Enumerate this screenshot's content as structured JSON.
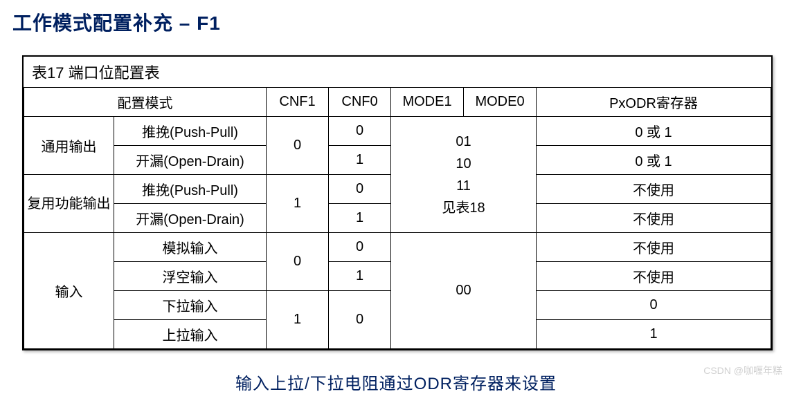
{
  "page": {
    "title": "工作模式配置补充   –   F1",
    "table_title": "表17     端口位配置表",
    "footer_note": "输入上拉/下拉电阻通过ODR寄存器来设置",
    "watermark": "CSDN @咖喱年糕"
  },
  "table": {
    "columns": [
      "配置模式",
      "CNF1",
      "CNF0",
      "MODE1",
      "MODE0",
      "PxODR寄存器"
    ],
    "groups": {
      "general_output": "通用输出",
      "alt_output": "复用功能输出",
      "input": "输入"
    },
    "rows": {
      "r1": {
        "mode": "推挽(Push-Pull)",
        "cnf0": "0",
        "odr": "0 或 1"
      },
      "r2": {
        "mode": "开漏(Open-Drain)",
        "cnf0": "1",
        "odr": "0 或 1"
      },
      "r3": {
        "mode": "推挽(Push-Pull)",
        "cnf0": "0",
        "odr": "不使用"
      },
      "r4": {
        "mode": "开漏(Open-Drain)",
        "cnf0": "1",
        "odr": "不使用"
      },
      "r5": {
        "mode": "模拟输入",
        "cnf0": "0",
        "odr": "不使用"
      },
      "r6": {
        "mode": "浮空输入",
        "cnf0": "1",
        "odr": "不使用"
      },
      "r7": {
        "mode": "下拉输入",
        "odr": "0"
      },
      "r8": {
        "mode": "上拉输入",
        "odr": "1"
      }
    },
    "cnf1": {
      "out_general": "0",
      "out_alt": "1",
      "in_a": "0",
      "in_b": "1"
    },
    "cnf0": {
      "in_b": "0"
    },
    "mode_output_lines": [
      "01",
      "10",
      "11",
      "见表18"
    ],
    "mode_input": "00"
  },
  "style": {
    "title_color": "#002060",
    "border_color": "#000000",
    "background": "#ffffff",
    "watermark_color": "#d0d0d0",
    "base_fontsize": 20,
    "title_fontsize": 28,
    "footer_fontsize": 24
  }
}
